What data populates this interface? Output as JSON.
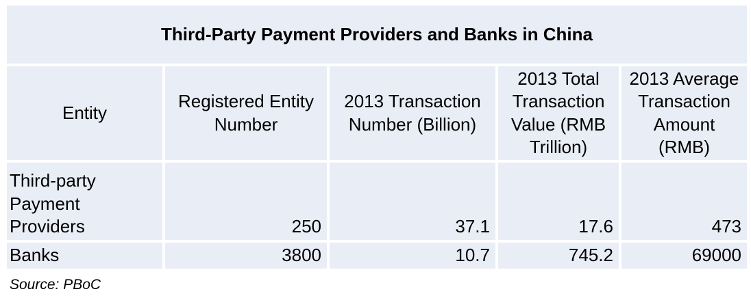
{
  "chart_data": {
    "type": "table",
    "title": "Third-Party Payment Providers and Banks in China",
    "columns": [
      "Entity",
      "Registered Entity Number",
      "2013 Transaction Number (Billion)",
      "2013 Total Transaction Value (RMB Trillion)",
      "2013 Average Transaction Amount (RMB)"
    ],
    "rows": [
      [
        "Third-party Payment Providers",
        "250",
        "37.1",
        "17.6",
        "473"
      ],
      [
        "Banks",
        "3800",
        "10.7",
        "745.2",
        "69000"
      ]
    ],
    "source": "Source: PBoC"
  },
  "style": {
    "cell_fill": "#E9EDF5",
    "text_color": "#000000",
    "page_background": "#FFFFFF"
  }
}
